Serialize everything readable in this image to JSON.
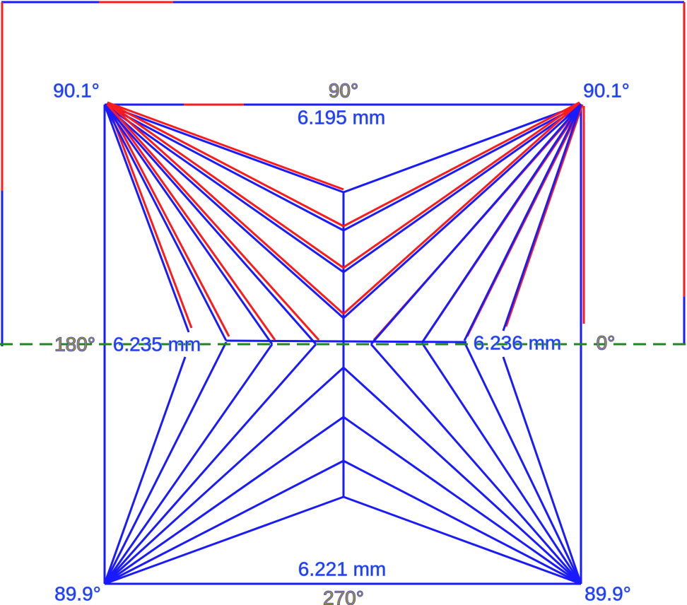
{
  "labels": {
    "top_left_angle": "90.1°",
    "top_direction": "90°",
    "top_right_angle": "90.1°",
    "top_width": "6.195 mm",
    "left_direction": "180°",
    "left_width": "6.235 mm",
    "right_width": "6.236 mm",
    "right_direction": "0°",
    "bottom_width": "6.221 mm",
    "bottom_left_angle": "89.9°",
    "bottom_direction": "270°",
    "bottom_right_angle": "89.9°"
  }
}
